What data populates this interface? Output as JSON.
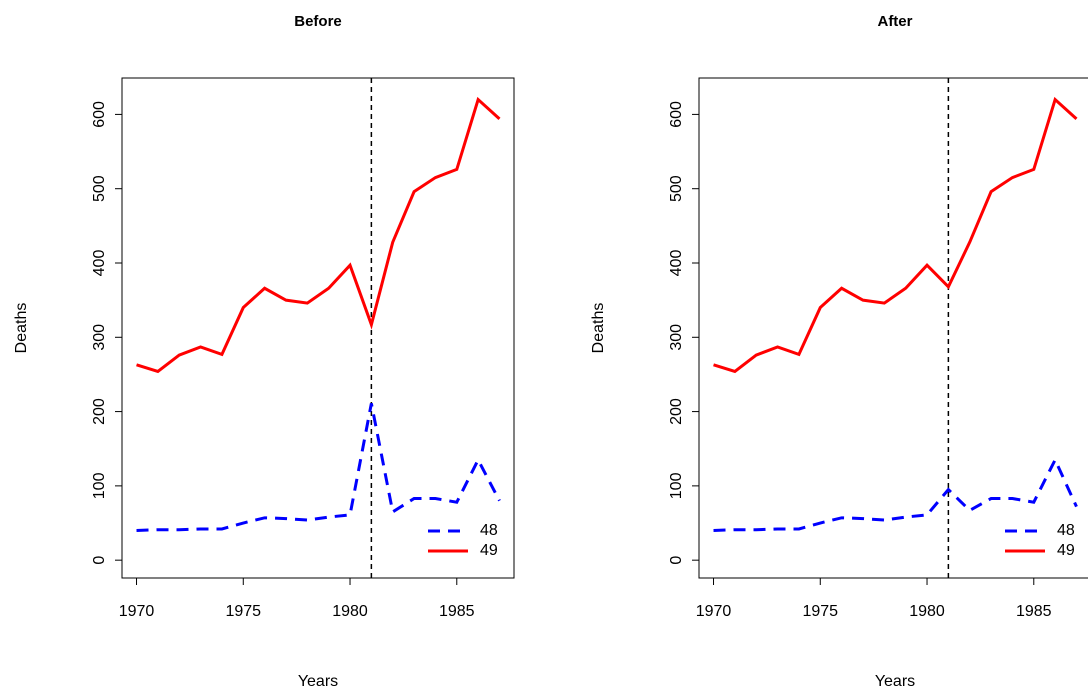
{
  "chart_data": [
    {
      "type": "line",
      "title": "Before",
      "xlabel": "Years",
      "ylabel": "Deaths",
      "x": [
        1970,
        1971,
        1972,
        1973,
        1974,
        1975,
        1976,
        1977,
        1978,
        1979,
        1980,
        1981,
        1982,
        1983,
        1984,
        1985,
        1986,
        1987
      ],
      "series": [
        {
          "name": "48",
          "color": "#0000ff",
          "dash": true,
          "values": [
            40,
            41,
            41,
            42,
            42,
            50,
            57,
            56,
            54,
            58,
            61,
            211,
            65,
            83,
            83,
            78,
            135,
            80
          ]
        },
        {
          "name": "49",
          "color": "#ff0000",
          "dash": false,
          "values": [
            263,
            254,
            276,
            287,
            277,
            340,
            366,
            350,
            346,
            366,
            397,
            317,
            428,
            496,
            515,
            526,
            620,
            594
          ]
        }
      ],
      "xlim": [
        1969.32,
        1987.68
      ],
      "ylim": [
        -24,
        649
      ],
      "xticks": [
        1970,
        1975,
        1980,
        1985
      ],
      "yticks": [
        0,
        100,
        200,
        300,
        400,
        500,
        600
      ],
      "vline": 1981,
      "legend": "bottom-right"
    },
    {
      "type": "line",
      "title": "After",
      "xlabel": "Years",
      "ylabel": "Deaths",
      "x": [
        1970,
        1971,
        1972,
        1973,
        1974,
        1975,
        1976,
        1977,
        1978,
        1979,
        1980,
        1981,
        1982,
        1983,
        1984,
        1985,
        1986,
        1987
      ],
      "series": [
        {
          "name": "48",
          "color": "#0000ff",
          "dash": true,
          "values": [
            40,
            41,
            41,
            42,
            42,
            50,
            57,
            56,
            54,
            58,
            61,
            95,
            67,
            83,
            83,
            78,
            135,
            72
          ]
        },
        {
          "name": "49",
          "color": "#ff0000",
          "dash": false,
          "values": [
            263,
            254,
            276,
            287,
            277,
            340,
            366,
            350,
            346,
            366,
            397,
            368,
            428,
            496,
            515,
            526,
            620,
            594
          ]
        }
      ],
      "xlim": [
        1969.32,
        1987.68
      ],
      "ylim": [
        -24,
        649
      ],
      "xticks": [
        1970,
        1975,
        1980,
        1985
      ],
      "yticks": [
        0,
        100,
        200,
        300,
        400,
        500,
        600
      ],
      "vline": 1981,
      "legend": "bottom-right"
    }
  ]
}
